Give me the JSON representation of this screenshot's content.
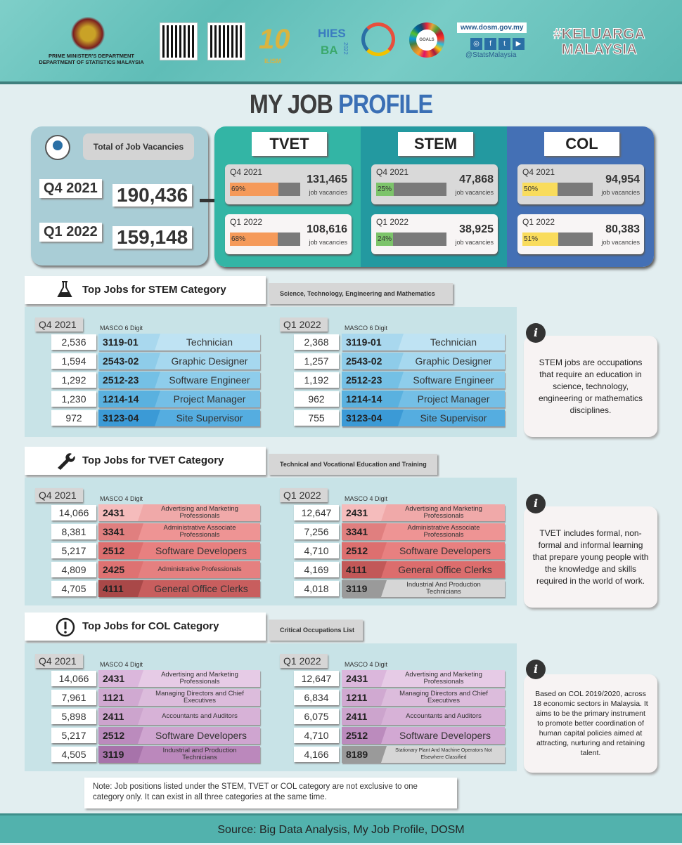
{
  "header": {
    "dept_line1": "PRIME MINISTER'S DEPARTMENT",
    "dept_line2": "DEPARTMENT OF STATISTICS MALAYSIA",
    "logo_10": "10",
    "logo_ilism": "ILISM",
    "logo_hies": "HIES",
    "logo_ba": "BA",
    "logo_2022": "2022",
    "logo_sdg": "GOALS",
    "website": "www.dosm.gov.my",
    "social_handle": "@StatsMalaysia",
    "hashtag_line1": "#KELUARGA",
    "hashtag_line2": "MALAYSIA"
  },
  "title": {
    "part1": "MY JOB",
    "part2": "PROFILE"
  },
  "total": {
    "label": "Total of Job Vacancies",
    "q4_label": "Q4 2021",
    "q4_value": "190,436",
    "q1_label": "Q1 2022",
    "q1_value": "159,148"
  },
  "categories": [
    {
      "name": "TVET",
      "color": "#33b5a5",
      "fill": "#f59a5a",
      "cards": [
        {
          "period": "Q4 2021",
          "pct": 69,
          "pct_label": "69%",
          "value": "131,465",
          "unit": "job vacancies"
        },
        {
          "period": "Q1 2022",
          "pct": 68,
          "pct_label": "68%",
          "value": "108,616",
          "unit": "job vacancies"
        }
      ]
    },
    {
      "name": "STEM",
      "color": "#2399a0",
      "fill": "#7cc46a",
      "cards": [
        {
          "period": "Q4 2021",
          "pct": 25,
          "pct_label": "25%",
          "value": "47,868",
          "unit": "job vacancies"
        },
        {
          "period": "Q1 2022",
          "pct": 24,
          "pct_label": "24%",
          "value": "38,925",
          "unit": "job vacancies"
        }
      ]
    },
    {
      "name": "COL",
      "color": "#4470b5",
      "fill": "#f9dc5c",
      "cards": [
        {
          "period": "Q4 2021",
          "pct": 50,
          "pct_label": "50%",
          "value": "94,954",
          "unit": "job vacancies"
        },
        {
          "period": "Q1 2022",
          "pct": 51,
          "pct_label": "51%",
          "value": "80,383",
          "unit": "job vacancies"
        }
      ]
    }
  ],
  "sections": [
    {
      "id": "stem",
      "icon": "flask-icon",
      "title": "Top Jobs for STEM Category",
      "subtitle": "Science, Technology, Engineering and Mathematics",
      "masco": "MASCO 6 Digit",
      "info": "STEM jobs are occupations that require an education in science, technology, engineering or mathematics disciplines.",
      "periods": [
        {
          "label": "Q4 2021",
          "rows": [
            {
              "n": "2,536",
              "code": "3119-01",
              "name": "Technician",
              "c": "#bfe3f3",
              "cc": "#a9d8ee"
            },
            {
              "n": "1,594",
              "code": "2543-02",
              "name": "Graphic Designer",
              "c": "#a6d8ef",
              "cc": "#8ecce9"
            },
            {
              "n": "1,292",
              "code": "2512-23",
              "name": "Software Engineer",
              "c": "#8ecdeb",
              "cc": "#74c0e5"
            },
            {
              "n": "1,230",
              "code": "1214-14",
              "name": "Project Manager",
              "c": "#74bfe6",
              "cc": "#5ab1df"
            },
            {
              "n": "972",
              "code": "3123-04",
              "name": "Site Supervisor",
              "c": "#55ade0",
              "cc": "#3b9ad6"
            }
          ]
        },
        {
          "label": "Q1 2022",
          "rows": [
            {
              "n": "2,368",
              "code": "3119-01",
              "name": "Technician",
              "c": "#bfe3f3",
              "cc": "#a9d8ee"
            },
            {
              "n": "1,257",
              "code": "2543-02",
              "name": "Graphic Designer",
              "c": "#a6d8ef",
              "cc": "#8ecce9"
            },
            {
              "n": "1,192",
              "code": "2512-23",
              "name": "Software Engineer",
              "c": "#8ecdeb",
              "cc": "#74c0e5"
            },
            {
              "n": "962",
              "code": "1214-14",
              "name": "Project Manager",
              "c": "#74bfe6",
              "cc": "#5ab1df"
            },
            {
              "n": "755",
              "code": "3123-04",
              "name": "Site Supervisor",
              "c": "#55ade0",
              "cc": "#3b9ad6"
            }
          ]
        }
      ]
    },
    {
      "id": "tvet",
      "icon": "wrench-icon",
      "title": "Top Jobs for TVET Category",
      "subtitle": "Technical and Vocational Education and Training",
      "masco": "MASCO 4 Digit",
      "info": "TVET includes formal, non-formal and informal learning that prepare young people with the knowledge and skills required in the world of work.",
      "periods": [
        {
          "label": "Q4 2021",
          "rows": [
            {
              "n": "14,066",
              "code": "2431",
              "name": "Advertising and Marketing Professionals",
              "c": "#f0a9a9",
              "cc": "#f5bcbc"
            },
            {
              "n": "8,381",
              "code": "3341",
              "name": "Administrative Associate Professionals",
              "c": "#ee9494",
              "cc": "#e07f7f"
            },
            {
              "n": "5,217",
              "code": "2512",
              "name": "Software Developers",
              "c": "#e88080",
              "cc": "#dd6f6f"
            },
            {
              "n": "4,809",
              "code": "2425",
              "name": "Administrative Professionals",
              "c": "#e58080",
              "cc": "#de7272"
            },
            {
              "n": "4,705",
              "code": "4111",
              "name": "General Office Clerks",
              "c": "#c85e5e",
              "cc": "#a94848"
            }
          ]
        },
        {
          "label": "Q1 2022",
          "rows": [
            {
              "n": "12,647",
              "code": "2431",
              "name": "Advertising and Marketing Professionals",
              "c": "#f0a9a9",
              "cc": "#f5bcbc"
            },
            {
              "n": "7,256",
              "code": "3341",
              "name": "Administrative Associate Professionals",
              "c": "#ee9494",
              "cc": "#e07f7f"
            },
            {
              "n": "4,710",
              "code": "2512",
              "name": "Software Developers",
              "c": "#e88080",
              "cc": "#dd6f6f"
            },
            {
              "n": "4,169",
              "code": "4111",
              "name": "General Office Clerks",
              "c": "#dc6d6d",
              "cc": "#c25858"
            },
            {
              "n": "4,018",
              "code": "3119",
              "name": "Industrial And Production Technicians",
              "c": "#d6d6d6",
              "cc": "#9a9a9a"
            }
          ]
        }
      ]
    },
    {
      "id": "col",
      "icon": "exclamation-icon",
      "title": "Top Jobs for COL Category",
      "subtitle": "Critical Occupations List",
      "masco": "MASCO 4 Digit",
      "info": "Based on COL 2019/2020, across 18 economic sectors in Malaysia. It aims to be the primary instrument to promote better coordination of human capital policies aimed at attracting, nurturing and retaining talent.",
      "periods": [
        {
          "label": "Q4 2021",
          "rows": [
            {
              "n": "14,066",
              "code": "2431",
              "name": "Advertising and Marketing Professionals",
              "c": "#e6cbe6",
              "cc": "#dbb7dc"
            },
            {
              "n": "7,961",
              "code": "1121",
              "name": "Managing Directors and Chief Executives",
              "c": "#dcbcdc",
              "cc": "#d0a9d1"
            },
            {
              "n": "5,898",
              "code": "2411",
              "name": "Accountants and Auditors",
              "c": "#d7b2d7",
              "cc": "#cca4cd"
            },
            {
              "n": "5,217",
              "code": "2512",
              "name": "Software Developers",
              "c": "#cfa5d0",
              "cc": "#bb8bbd"
            },
            {
              "n": "4,505",
              "code": "3119",
              "name": "Industrial and Production Technicians",
              "c": "#bb88bc",
              "cc": "#a773aa"
            }
          ]
        },
        {
          "label": "Q1 2022",
          "rows": [
            {
              "n": "12,647",
              "code": "2431",
              "name": "Advertising and Marketing Professionals",
              "c": "#e6cbe6",
              "cc": "#dbb7dc"
            },
            {
              "n": "6,834",
              "code": "1211",
              "name": "Managing Directors and Chief Executives",
              "c": "#dcbcdc",
              "cc": "#d0a9d1"
            },
            {
              "n": "6,075",
              "code": "2411",
              "name": "Accountants and Auditors",
              "c": "#d7b2d7",
              "cc": "#cca4cd"
            },
            {
              "n": "4,710",
              "code": "2512",
              "name": "Software Developers",
              "c": "#d2a8d3",
              "cc": "#bb8bbd"
            },
            {
              "n": "4,166",
              "code": "8189",
              "name": "Stationary Plant And Machine Operators Not Elsewhere Classified",
              "c": "#d6d6d6",
              "cc": "#9a9a9a"
            }
          ]
        }
      ]
    }
  ],
  "note": "Note: Job positions listed under the STEM, TVET or COL category are not exclusive to one category only. It can exist in all three categories at the same time.",
  "footer": "Source: Big Data Analysis, My Job Profile, DOSM"
}
